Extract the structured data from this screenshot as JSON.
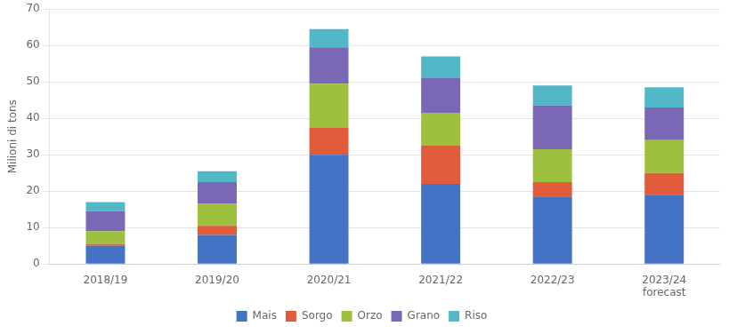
{
  "chart_data": {
    "type": "bar",
    "stacked": true,
    "categories": [
      "2018/19",
      "2019/20",
      "2020/21",
      "2021/22",
      "2022/23",
      "2023/24\nforecast"
    ],
    "series": [
      {
        "name": "Mais",
        "color": "#4472c4",
        "values": [
          5.0,
          8.0,
          30.0,
          22.0,
          18.5,
          19.0
        ]
      },
      {
        "name": "Sorgo",
        "color": "#e05c3a",
        "values": [
          0.5,
          2.5,
          7.5,
          10.5,
          4.0,
          6.0
        ]
      },
      {
        "name": "Orzo",
        "color": "#9dc13f",
        "values": [
          3.5,
          6.0,
          12.0,
          9.0,
          9.0,
          9.0
        ]
      },
      {
        "name": "Grano",
        "color": "#7b68b5",
        "values": [
          5.5,
          6.0,
          10.0,
          9.5,
          12.0,
          9.0
        ]
      },
      {
        "name": "Riso",
        "color": "#52b8c8",
        "values": [
          2.5,
          3.0,
          5.0,
          6.0,
          5.5,
          5.5
        ]
      }
    ],
    "ylabel": "Milioni di tons",
    "ylim": [
      0,
      70
    ],
    "yticks": [
      0,
      10,
      20,
      30,
      40,
      50,
      60,
      70
    ],
    "grid": true,
    "legend": "bottom"
  }
}
